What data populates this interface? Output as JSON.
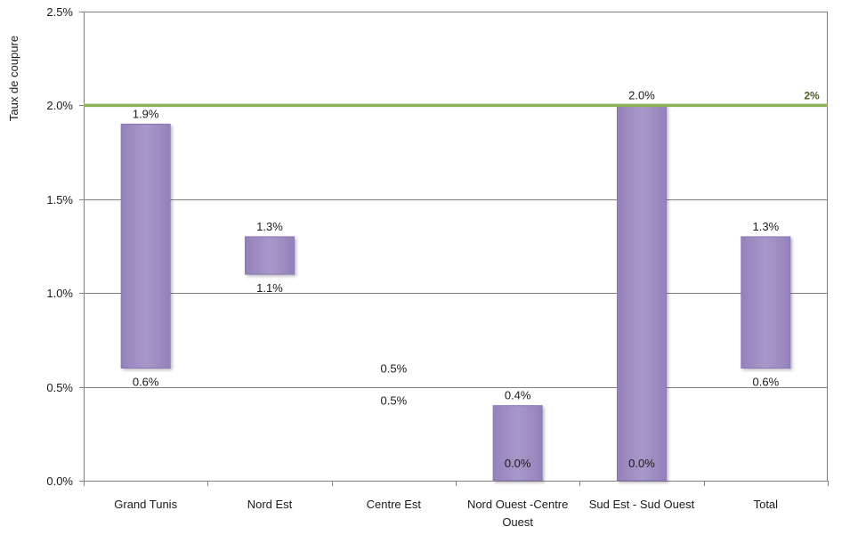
{
  "chart_data": {
    "type": "bar",
    "subtype": "floating-range-bar",
    "ylabel": "Taux de coupure",
    "ylim": [
      0,
      0.025
    ],
    "yticks": [
      "0.0%",
      "0.5%",
      "1.0%",
      "1.5%",
      "2.0%",
      "2.5%"
    ],
    "ytick_values": [
      0,
      0.005,
      0.01,
      0.015,
      0.02,
      0.025
    ],
    "grid": true,
    "categories": [
      {
        "lines": [
          "Grand Tunis"
        ]
      },
      {
        "lines": [
          "Nord Est"
        ]
      },
      {
        "lines": [
          "Centre Est"
        ]
      },
      {
        "lines": [
          "Nord Ouest -Centre",
          "Ouest"
        ]
      },
      {
        "lines": [
          "Sud Est - Sud Ouest"
        ]
      },
      {
        "lines": [
          "Total"
        ]
      }
    ],
    "ranges": [
      {
        "low": 0.006,
        "high": 0.019,
        "low_label": "0.6%",
        "high_label": "1.9%"
      },
      {
        "low": 0.011,
        "high": 0.013,
        "low_label": "1.1%",
        "high_label": "1.3%"
      },
      {
        "low": 0.005,
        "high": 0.005,
        "low_label": "0.5%",
        "high_label": "0.5%"
      },
      {
        "low": 0.0,
        "high": 0.004,
        "low_label": "0.0%",
        "high_label": "0.4%"
      },
      {
        "low": 0.0,
        "high": 0.02,
        "low_label": "0.0%",
        "high_label": "2.0%"
      },
      {
        "low": 0.006,
        "high": 0.013,
        "low_label": "0.6%",
        "high_label": "1.3%"
      }
    ],
    "reference_line": {
      "value": 0.02,
      "label": "2%",
      "color": "#8db255"
    },
    "colors": {
      "bar_fill": "#a391c4",
      "bar_edge": "#8b75b6",
      "grid": "#7f7f7f",
      "reference": "#8db255",
      "reference_label": "#4f6228"
    }
  }
}
